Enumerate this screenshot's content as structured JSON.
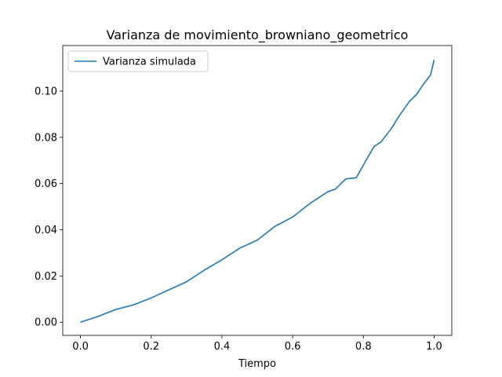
{
  "chart_data": {
    "type": "line",
    "title": "Varianza de movimiento_browniano_geometrico",
    "xlabel": "Tiempo",
    "ylabel": "",
    "xlim": [
      -0.05,
      1.05
    ],
    "ylim": [
      -0.0057,
      0.1197
    ],
    "xticks": [
      0.0,
      0.2,
      0.4,
      0.6,
      0.8,
      1.0
    ],
    "xtick_labels": [
      "0.0",
      "0.2",
      "0.4",
      "0.6",
      "0.8",
      "1.0"
    ],
    "yticks": [
      0.0,
      0.02,
      0.04,
      0.06,
      0.08,
      0.1
    ],
    "ytick_labels": [
      "0.00",
      "0.02",
      "0.04",
      "0.06",
      "0.08",
      "0.10"
    ],
    "grid": false,
    "legend_position": "top-left",
    "series": [
      {
        "name": "Varianza simulada",
        "color": "#1f77b4",
        "x": [
          0.0,
          0.05,
          0.1,
          0.15,
          0.2,
          0.25,
          0.3,
          0.35,
          0.4,
          0.45,
          0.5,
          0.55,
          0.6,
          0.65,
          0.7,
          0.72,
          0.75,
          0.78,
          0.8,
          0.83,
          0.85,
          0.88,
          0.9,
          0.93,
          0.95,
          0.97,
          0.99,
          1.0
        ],
        "y": [
          0.0,
          0.0025,
          0.0055,
          0.0075,
          0.0105,
          0.014,
          0.0175,
          0.0225,
          0.027,
          0.032,
          0.0355,
          0.0415,
          0.0455,
          0.0515,
          0.0565,
          0.0575,
          0.062,
          0.0625,
          0.068,
          0.076,
          0.078,
          0.084,
          0.089,
          0.0955,
          0.0985,
          0.103,
          0.107,
          0.1135
        ]
      }
    ]
  }
}
